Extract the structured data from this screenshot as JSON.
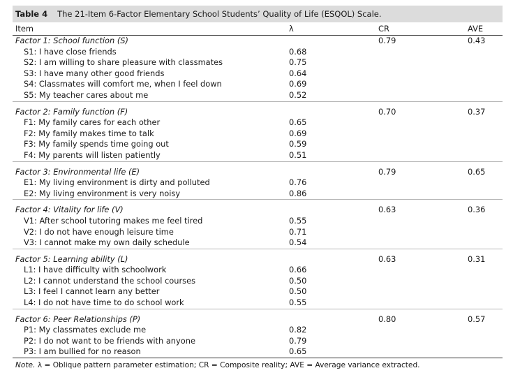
{
  "caption": {
    "label": "Table 4",
    "title": "The 21-Item 6-Factor Elementary School Students’ Quality of Life (ESQOL) Scale."
  },
  "headers": {
    "item": "Item",
    "lambda": "λ",
    "cr": "CR",
    "ave": "AVE"
  },
  "factors": [
    {
      "name": "Factor 1: School function (S)",
      "cr": "0.79",
      "ave": "0.43",
      "items": [
        {
          "text": "S1: I have close friends",
          "lambda": "0.68"
        },
        {
          "text": "S2: I am willing to share pleasure with classmates",
          "lambda": "0.75"
        },
        {
          "text": "S3: I have many other good friends",
          "lambda": "0.64"
        },
        {
          "text": "S4: Classmates will comfort me, when I feel down",
          "lambda": "0.69"
        },
        {
          "text": "S5: My teacher cares about me",
          "lambda": "0.52"
        }
      ]
    },
    {
      "name": "Factor 2: Family function (F)",
      "cr": "0.70",
      "ave": "0.37",
      "items": [
        {
          "text": "F1: My family cares for each other",
          "lambda": "0.65"
        },
        {
          "text": "F2: My family makes time to talk",
          "lambda": "0.69"
        },
        {
          "text": "F3: My family spends time going out",
          "lambda": "0.59"
        },
        {
          "text": "F4: My parents will listen patiently",
          "lambda": "0.51"
        }
      ]
    },
    {
      "name": "Factor 3: Environmental life (E)",
      "cr": "0.79",
      "ave": "0.65",
      "items": [
        {
          "text": "E1: My living environment is dirty and polluted",
          "lambda": "0.76"
        },
        {
          "text": "E2: My living environment is very noisy",
          "lambda": "0.86"
        }
      ]
    },
    {
      "name": "Factor 4: Vitality for life (V)",
      "cr": "0.63",
      "ave": "0.36",
      "items": [
        {
          "text": "V1: After school tutoring makes me feel tired",
          "lambda": "0.55"
        },
        {
          "text": "V2: I do not have enough leisure time",
          "lambda": "0.71"
        },
        {
          "text": "V3: I cannot make my own daily schedule",
          "lambda": "0.54"
        }
      ]
    },
    {
      "name": "Factor 5: Learning ability (L)",
      "cr": "0.63",
      "ave": "0.31",
      "items": [
        {
          "text": "L1: I have difficulty with schoolwork",
          "lambda": "0.66"
        },
        {
          "text": "L2: I cannot understand the school courses",
          "lambda": "0.50"
        },
        {
          "text": "L3: I feel I cannot learn any better",
          "lambda": "0.50"
        },
        {
          "text": "L4: I do not have time to do school work",
          "lambda": "0.55"
        }
      ]
    },
    {
      "name": "Factor 6: Peer Relationships (P)",
      "cr": "0.80",
      "ave": "0.57",
      "items": [
        {
          "text": "P1: My classmates exclude me",
          "lambda": "0.82"
        },
        {
          "text": "P2: I do not want to be friends with anyone",
          "lambda": "0.79"
        },
        {
          "text": "P3: I am bullied for no reason",
          "lambda": "0.65"
        }
      ]
    }
  ],
  "note": {
    "label": "Note.",
    "text": " λ = Oblique pattern parameter estimation; CR = Composite reality; AVE = Average variance extracted."
  }
}
